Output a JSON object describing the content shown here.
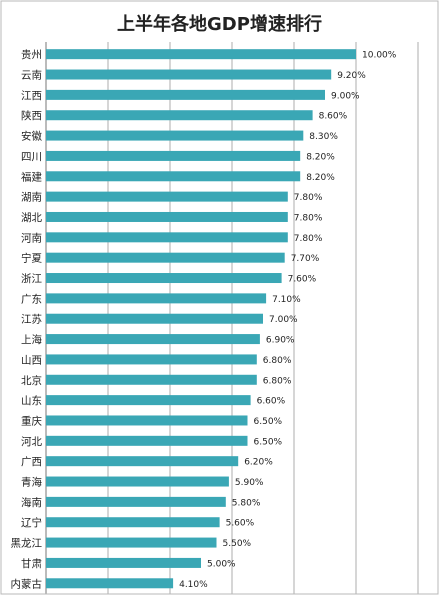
{
  "colors": {
    "bar": "#3aa7b5",
    "grid": "#9a9a9a",
    "frame": "#b8b8b8",
    "text": "#222222"
  },
  "chart_data": {
    "type": "bar",
    "orientation": "horizontal",
    "title": "上半年各地GDP增速排行",
    "categories": [
      "贵州",
      "云南",
      "江西",
      "陕西",
      "安徽",
      "四川",
      "福建",
      "湖南",
      "湖北",
      "河南",
      "宁夏",
      "浙江",
      "广东",
      "江苏",
      "上海",
      "山西",
      "北京",
      "山东",
      "重庆",
      "河北",
      "广西",
      "青海",
      "海南",
      "辽宁",
      "黑龙江",
      "甘肃",
      "内蒙古"
    ],
    "values": [
      10.0,
      9.2,
      9.0,
      8.6,
      8.3,
      8.2,
      8.2,
      7.8,
      7.8,
      7.8,
      7.7,
      7.6,
      7.1,
      7.0,
      6.9,
      6.8,
      6.8,
      6.6,
      6.5,
      6.5,
      6.2,
      5.9,
      5.8,
      5.6,
      5.5,
      5.0,
      4.1
    ],
    "value_labels": [
      "10.00%",
      "9.20%",
      "9.00%",
      "8.60%",
      "8.30%",
      "8.20%",
      "8.20%",
      "7.80%",
      "7.80%",
      "7.80%",
      "7.70%",
      "7.60%",
      "7.10%",
      "7.00%",
      "6.90%",
      "6.80%",
      "6.80%",
      "6.60%",
      "6.50%",
      "6.50%",
      "6.20%",
      "5.90%",
      "5.80%",
      "5.60%",
      "5.50%",
      "5.00%",
      "4.10%"
    ],
    "xlim": [
      0,
      12
    ],
    "grid": true,
    "legend": "none"
  }
}
